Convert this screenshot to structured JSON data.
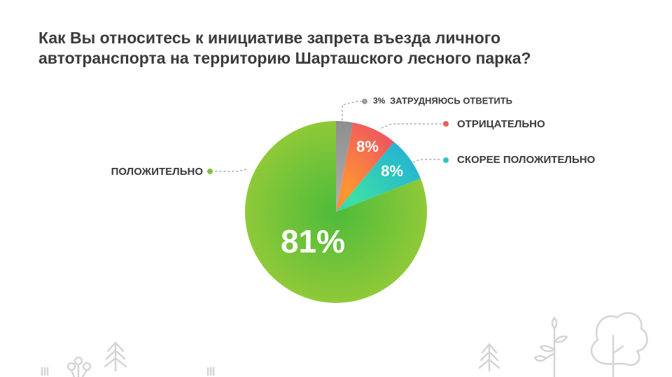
{
  "title_lines": [
    "Как Вы относитесь к инициативе запрета въезда личного",
    "автотранспорта на территорию Шарташского лесного парка?"
  ],
  "chart_data": {
    "type": "pie",
    "title": "Как Вы относитесь к инициативе запрета въезда личного автотранспорта на территорию Шарташского лесного парка?",
    "slices": [
      {
        "label": "ЗАТРУДНЯЮСЬ ОТВЕТИТЬ",
        "value": 3,
        "display": "3%",
        "color": "#9e9e9e"
      },
      {
        "label": "ОТРИЦАТЕЛЬНО",
        "value": 8,
        "display": "8%",
        "color": "#f2704e"
      },
      {
        "label": "СКОРЕЕ ПОЛОЖИТЕЛЬНО",
        "value": 8,
        "display": "8%",
        "color": "#2fc3c9"
      },
      {
        "label": "ПОЛОЖИТЕЛЬНО",
        "value": 81,
        "display": "81%",
        "color": "#7fc43d"
      }
    ]
  },
  "colors": {
    "gray": "#9e9e9e",
    "orange": "#f2704e",
    "teal": "#2fc3c9",
    "green": "#7fc43d",
    "dot_red": "#ef5b5b",
    "decor": "#d5d5d5"
  }
}
